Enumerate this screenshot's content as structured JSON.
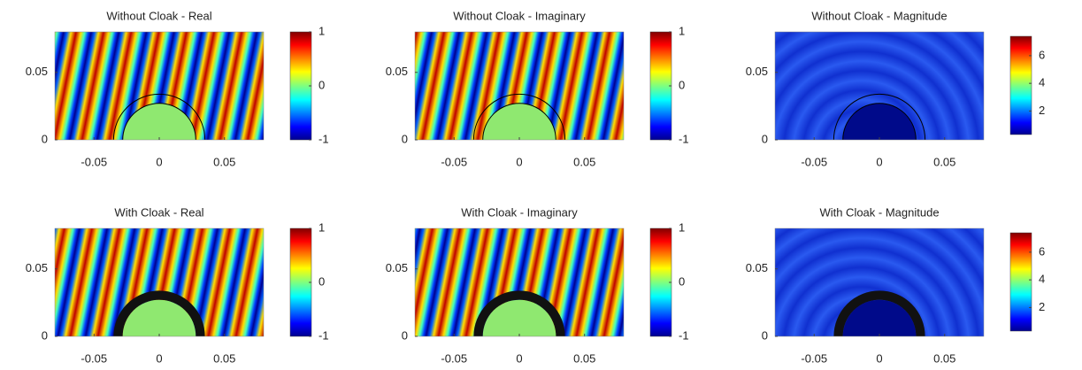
{
  "chart_data": [
    {
      "type": "heatmap",
      "title": "Without Cloak - Real",
      "xlim": [
        -0.08,
        0.08
      ],
      "ylim": [
        0,
        0.08
      ],
      "xticks": [
        -0.05,
        0,
        0.05
      ],
      "yticks": [
        0,
        0.05
      ],
      "clim": [
        -1,
        1
      ],
      "cticks": [
        -1,
        0,
        1
      ]
    },
    {
      "type": "heatmap",
      "title": "Without Cloak - Imaginary",
      "xlim": [
        -0.08,
        0.08
      ],
      "ylim": [
        0,
        0.08
      ],
      "xticks": [
        -0.05,
        0,
        0.05
      ],
      "yticks": [
        0,
        0.05
      ],
      "clim": [
        -1,
        1
      ],
      "cticks": [
        -1,
        0,
        1
      ]
    },
    {
      "type": "heatmap",
      "title": "Without Cloak - Magnitude",
      "xlim": [
        -0.08,
        0.08
      ],
      "ylim": [
        0,
        0.08
      ],
      "xticks": [
        -0.05,
        0,
        0.05
      ],
      "yticks": [
        0,
        0.05
      ],
      "clim": [
        0.3,
        7.4
      ],
      "cticks": [
        2,
        4,
        6
      ]
    },
    {
      "type": "heatmap",
      "title": "With Cloak - Real",
      "xlim": [
        -0.08,
        0.08
      ],
      "ylim": [
        0,
        0.08
      ],
      "xticks": [
        -0.05,
        0,
        0.05
      ],
      "yticks": [
        0,
        0.05
      ],
      "clim": [
        -1,
        1
      ],
      "cticks": [
        -1,
        0,
        1
      ]
    },
    {
      "type": "heatmap",
      "title": "With Cloak - Imaginary",
      "xlim": [
        -0.08,
        0.08
      ],
      "ylim": [
        0,
        0.08
      ],
      "xticks": [
        -0.05,
        0,
        0.05
      ],
      "yticks": [
        0,
        0.05
      ],
      "clim": [
        -1,
        1
      ],
      "cticks": [
        -1,
        0,
        1
      ]
    },
    {
      "type": "heatmap",
      "title": "With Cloak - Magnitude",
      "xlim": [
        -0.08,
        0.08
      ],
      "ylim": [
        0,
        0.08
      ],
      "xticks": [
        -0.05,
        0,
        0.05
      ],
      "yticks": [
        0,
        0.05
      ],
      "clim": [
        0.3,
        7.4
      ],
      "cticks": [
        2,
        4,
        6
      ]
    }
  ]
}
